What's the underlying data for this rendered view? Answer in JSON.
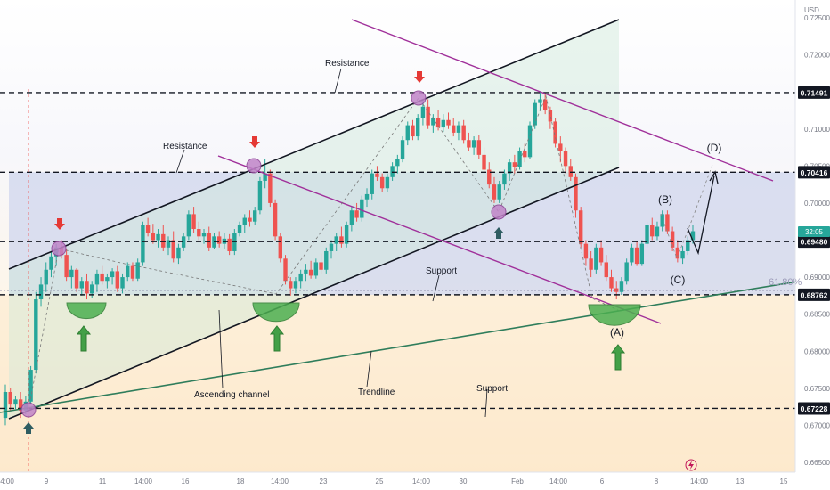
{
  "chart_data": {
    "type": "candlestick",
    "currency": "USD",
    "ylim": [
      0.665,
      0.7275
    ],
    "y_ticks": [
      "0.72500",
      "0.72000",
      "0.71500",
      "0.71000",
      "0.70500",
      "0.70000",
      "0.69500",
      "0.69000",
      "0.68500",
      "0.68000",
      "0.67500",
      "0.67000",
      "0.66500"
    ],
    "x_ticks": [
      "4:00",
      "9",
      "11",
      "14:00",
      "16",
      "18",
      "14:00",
      "23",
      "25",
      "14:00",
      "30",
      "Feb",
      "14:00",
      "6",
      "8",
      "14:00",
      "13",
      "15"
    ],
    "price_levels": [
      {
        "label": "0.71491",
        "value": 0.71491,
        "color": "#131722"
      },
      {
        "label": "0.70416",
        "value": 0.70416,
        "color": "#131722"
      },
      {
        "label": "0.69480",
        "value": 0.6948,
        "color": "#131722"
      },
      {
        "label": "0.68762",
        "value": 0.68762,
        "color": "#131722"
      },
      {
        "label": "0.67228",
        "value": 0.67228,
        "color": "#131722"
      }
    ],
    "last_price_tag": "32:05",
    "fib_label": "61.80%",
    "annotations": {
      "resistance_top": "Resistance",
      "resistance_mid": "Resistance",
      "support_mid": "Support",
      "support_low": "Support",
      "ascending_channel": "Ascending channel",
      "trendline": "Trendline",
      "wave_a": "(A)",
      "wave_b": "(B)",
      "wave_c": "(C)",
      "wave_d": "(D)"
    },
    "candles": [
      [
        0.671,
        0.6755,
        0.67,
        0.6745
      ],
      [
        0.6745,
        0.675,
        0.672,
        0.6728
      ],
      [
        0.6728,
        0.674,
        0.6722,
        0.6735
      ],
      [
        0.6735,
        0.6745,
        0.671,
        0.672
      ],
      [
        0.672,
        0.674,
        0.6715,
        0.6732
      ],
      [
        0.6732,
        0.678,
        0.6728,
        0.6775
      ],
      [
        0.6775,
        0.688,
        0.677,
        0.687
      ],
      [
        0.687,
        0.69,
        0.686,
        0.689
      ],
      [
        0.689,
        0.692,
        0.688,
        0.691
      ],
      [
        0.691,
        0.6935,
        0.69,
        0.6928
      ],
      [
        0.6928,
        0.6945,
        0.6915,
        0.694
      ],
      [
        0.694,
        0.695,
        0.6925,
        0.693
      ],
      [
        0.693,
        0.6938,
        0.6895,
        0.69
      ],
      [
        0.69,
        0.6915,
        0.6885,
        0.691
      ],
      [
        0.691,
        0.6912,
        0.688,
        0.6885
      ],
      [
        0.6885,
        0.69,
        0.6875,
        0.6895
      ],
      [
        0.6895,
        0.6905,
        0.687,
        0.6878
      ],
      [
        0.6878,
        0.6895,
        0.6872,
        0.689
      ],
      [
        0.689,
        0.691,
        0.688,
        0.6905
      ],
      [
        0.6905,
        0.6915,
        0.689,
        0.6895
      ],
      [
        0.6895,
        0.6905,
        0.6885,
        0.69
      ],
      [
        0.69,
        0.6912,
        0.689,
        0.6908
      ],
      [
        0.6908,
        0.6915,
        0.688,
        0.6885
      ],
      [
        0.6885,
        0.6905,
        0.6878,
        0.69
      ],
      [
        0.69,
        0.692,
        0.6895,
        0.6915
      ],
      [
        0.6915,
        0.692,
        0.6895,
        0.6898
      ],
      [
        0.6898,
        0.6925,
        0.6895,
        0.692
      ],
      [
        0.692,
        0.6975,
        0.6915,
        0.697
      ],
      [
        0.697,
        0.698,
        0.6955,
        0.696
      ],
      [
        0.696,
        0.6972,
        0.6945,
        0.695
      ],
      [
        0.695,
        0.6965,
        0.694,
        0.6958
      ],
      [
        0.6958,
        0.697,
        0.6935,
        0.694
      ],
      [
        0.694,
        0.6955,
        0.693,
        0.695
      ],
      [
        0.695,
        0.6962,
        0.692,
        0.6925
      ],
      [
        0.6925,
        0.6945,
        0.6918,
        0.694
      ],
      [
        0.694,
        0.696,
        0.6935,
        0.6955
      ],
      [
        0.6955,
        0.699,
        0.695,
        0.6985
      ],
      [
        0.6985,
        0.6995,
        0.696,
        0.6965
      ],
      [
        0.6965,
        0.6975,
        0.695,
        0.6955
      ],
      [
        0.6955,
        0.6965,
        0.6945,
        0.696
      ],
      [
        0.696,
        0.6968,
        0.6935,
        0.694
      ],
      [
        0.694,
        0.696,
        0.6938,
        0.6955
      ],
      [
        0.6955,
        0.6962,
        0.694,
        0.6945
      ],
      [
        0.6945,
        0.696,
        0.6938,
        0.6952
      ],
      [
        0.6952,
        0.6958,
        0.693,
        0.6935
      ],
      [
        0.6935,
        0.6965,
        0.693,
        0.696
      ],
      [
        0.696,
        0.6975,
        0.6955,
        0.697
      ],
      [
        0.697,
        0.6985,
        0.696,
        0.698
      ],
      [
        0.698,
        0.699,
        0.6968,
        0.6975
      ],
      [
        0.6975,
        0.6995,
        0.697,
        0.699
      ],
      [
        0.699,
        0.7035,
        0.6985,
        0.703
      ],
      [
        0.703,
        0.706,
        0.702,
        0.704
      ],
      [
        0.704,
        0.7045,
        0.6995,
        0.7
      ],
      [
        0.7,
        0.7005,
        0.695,
        0.6955
      ],
      [
        0.6955,
        0.696,
        0.692,
        0.6925
      ],
      [
        0.6925,
        0.693,
        0.689,
        0.6895
      ],
      [
        0.6895,
        0.69,
        0.6875,
        0.6885
      ],
      [
        0.6885,
        0.69,
        0.6878,
        0.6895
      ],
      [
        0.6895,
        0.691,
        0.6885,
        0.6905
      ],
      [
        0.6905,
        0.6918,
        0.6895,
        0.691
      ],
      [
        0.691,
        0.6922,
        0.6898,
        0.6902
      ],
      [
        0.6902,
        0.6925,
        0.6898,
        0.692
      ],
      [
        0.692,
        0.6932,
        0.6905,
        0.691
      ],
      [
        0.691,
        0.694,
        0.6905,
        0.6935
      ],
      [
        0.6935,
        0.695,
        0.6925,
        0.6945
      ],
      [
        0.6945,
        0.696,
        0.6935,
        0.6955
      ],
      [
        0.6955,
        0.6968,
        0.694,
        0.6945
      ],
      [
        0.6945,
        0.6975,
        0.694,
        0.697
      ],
      [
        0.697,
        0.6995,
        0.6962,
        0.699
      ],
      [
        0.699,
        0.7,
        0.6975,
        0.698
      ],
      [
        0.698,
        0.701,
        0.6975,
        0.7005
      ],
      [
        0.7005,
        0.702,
        0.6995,
        0.7012
      ],
      [
        0.7012,
        0.7045,
        0.7005,
        0.704
      ],
      [
        0.704,
        0.705,
        0.703,
        0.7035
      ],
      [
        0.7035,
        0.704,
        0.7015,
        0.702
      ],
      [
        0.702,
        0.704,
        0.7015,
        0.7035
      ],
      [
        0.7035,
        0.7055,
        0.703,
        0.705
      ],
      [
        0.705,
        0.7065,
        0.704,
        0.706
      ],
      [
        0.706,
        0.709,
        0.7055,
        0.7085
      ],
      [
        0.7085,
        0.711,
        0.7078,
        0.7105
      ],
      [
        0.7105,
        0.7112,
        0.7085,
        0.709
      ],
      [
        0.709,
        0.712,
        0.7085,
        0.7115
      ],
      [
        0.7115,
        0.714,
        0.7105,
        0.713
      ],
      [
        0.713,
        0.714,
        0.71,
        0.7105
      ],
      [
        0.7105,
        0.712,
        0.7095,
        0.7115
      ],
      [
        0.7115,
        0.7125,
        0.7098,
        0.7102
      ],
      [
        0.7102,
        0.712,
        0.7096,
        0.7112
      ],
      [
        0.7112,
        0.7122,
        0.71,
        0.7105
      ],
      [
        0.7105,
        0.7115,
        0.709,
        0.7095
      ],
      [
        0.7095,
        0.711,
        0.7085,
        0.7105
      ],
      [
        0.7105,
        0.7112,
        0.708,
        0.7085
      ],
      [
        0.7085,
        0.7095,
        0.707,
        0.7075
      ],
      [
        0.7075,
        0.709,
        0.7065,
        0.7085
      ],
      [
        0.7085,
        0.7092,
        0.706,
        0.7065
      ],
      [
        0.7065,
        0.7075,
        0.704,
        0.7045
      ],
      [
        0.7045,
        0.7055,
        0.702,
        0.7025
      ],
      [
        0.7025,
        0.7035,
        0.7,
        0.7005
      ],
      [
        0.7005,
        0.703,
        0.7,
        0.7025
      ],
      [
        0.7025,
        0.7045,
        0.7018,
        0.704
      ],
      [
        0.704,
        0.706,
        0.703,
        0.7055
      ],
      [
        0.7055,
        0.7065,
        0.704,
        0.7048
      ],
      [
        0.7048,
        0.7075,
        0.7045,
        0.707
      ],
      [
        0.707,
        0.708,
        0.7055,
        0.7062
      ],
      [
        0.7062,
        0.711,
        0.706,
        0.7105
      ],
      [
        0.7105,
        0.714,
        0.71,
        0.7135
      ],
      [
        0.7135,
        0.715,
        0.7125,
        0.714
      ],
      [
        0.714,
        0.7149,
        0.712,
        0.7125
      ],
      [
        0.7125,
        0.713,
        0.71,
        0.711
      ],
      [
        0.711,
        0.7115,
        0.7075,
        0.708
      ],
      [
        0.708,
        0.709,
        0.7055,
        0.707
      ],
      [
        0.707,
        0.7075,
        0.704,
        0.705
      ],
      [
        0.705,
        0.706,
        0.703,
        0.7035
      ],
      [
        0.7035,
        0.704,
        0.698,
        0.699
      ],
      [
        0.699,
        0.6995,
        0.694,
        0.6945
      ],
      [
        0.6945,
        0.695,
        0.6915,
        0.6925
      ],
      [
        0.6925,
        0.6935,
        0.69,
        0.691
      ],
      [
        0.691,
        0.6945,
        0.6905,
        0.694
      ],
      [
        0.694,
        0.695,
        0.6915,
        0.692
      ],
      [
        0.692,
        0.693,
        0.6895,
        0.69
      ],
      [
        0.69,
        0.691,
        0.688,
        0.6885
      ],
      [
        0.6885,
        0.6895,
        0.687,
        0.688
      ],
      [
        0.688,
        0.69,
        0.6876,
        0.6895
      ],
      [
        0.6895,
        0.6925,
        0.689,
        0.692
      ],
      [
        0.692,
        0.6945,
        0.6915,
        0.694
      ],
      [
        0.694,
        0.6948,
        0.6915,
        0.6918
      ],
      [
        0.6918,
        0.695,
        0.6915,
        0.6945
      ],
      [
        0.6945,
        0.6975,
        0.694,
        0.697
      ],
      [
        0.697,
        0.698,
        0.695,
        0.6955
      ],
      [
        0.6955,
        0.6975,
        0.695,
        0.6968
      ],
      [
        0.6968,
        0.699,
        0.6962,
        0.6985
      ],
      [
        0.6985,
        0.699,
        0.6958,
        0.6962
      ],
      [
        0.6962,
        0.6968,
        0.6935,
        0.694
      ],
      [
        0.694,
        0.695,
        0.692,
        0.6925
      ],
      [
        0.6925,
        0.6942,
        0.6918,
        0.6935
      ],
      [
        0.6935,
        0.6955,
        0.693,
        0.695
      ],
      [
        0.695,
        0.697,
        0.6945,
        0.6962
      ]
    ],
    "colors": {
      "up": "#26a69a",
      "down": "#ef5350",
      "channel": "#131722",
      "magenta": "#a0309a",
      "trendline": "#2e7d5b",
      "resistance_zone": "#cfd6ee",
      "support_zone": "#fde9cc"
    }
  }
}
